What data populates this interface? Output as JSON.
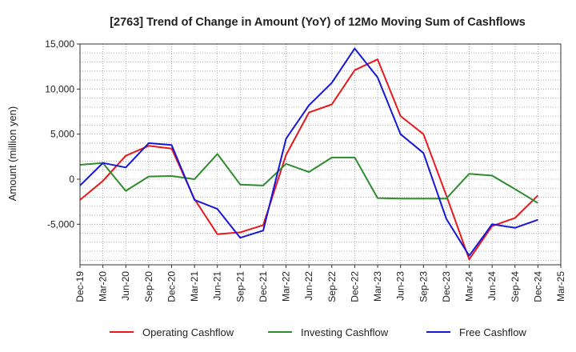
{
  "chart_data": {
    "type": "line",
    "title": "[2763]  Trend of Change in Amount (YoY) of 12Mo Moving Sum of Cashflows",
    "xlabel": "",
    "ylabel": "Amount (million yen)",
    "ylim": [
      -9500,
      15000
    ],
    "yticks": [
      15000,
      10000,
      5000,
      0,
      -5000
    ],
    "ytick_labels": [
      "15,000",
      "10,000",
      "5,000",
      "0",
      "-5,000"
    ],
    "categories": [
      "Dec-19",
      "Mar-20",
      "Jun-20",
      "Sep-20",
      "Dec-20",
      "Mar-21",
      "Jun-21",
      "Sep-21",
      "Dec-21",
      "Mar-22",
      "Jun-22",
      "Sep-22",
      "Dec-22",
      "Mar-23",
      "Jun-23",
      "Sep-23",
      "Dec-23",
      "Mar-24",
      "Jun-24",
      "Sep-24",
      "Dec-24",
      "Mar-25"
    ],
    "grid": true,
    "legend_position": "bottom",
    "series": [
      {
        "name": "Operating Cashflow",
        "color": "#e8191c",
        "values": [
          -2300,
          -200,
          2600,
          3700,
          3400,
          -2200,
          -6100,
          -5900,
          -5100,
          2700,
          7400,
          8300,
          12100,
          13300,
          7000,
          5000,
          -1800,
          -8900,
          -5200,
          -4300,
          -1800,
          null
        ]
      },
      {
        "name": "Investing Cashflow",
        "color": "#2e8b2e",
        "values": [
          1600,
          1800,
          -1300,
          300,
          350,
          0,
          2800,
          -600,
          -700,
          1700,
          800,
          2400,
          2400,
          -2100,
          -2150,
          -2150,
          -2150,
          600,
          400,
          -1100,
          -2650,
          null
        ]
      },
      {
        "name": "Free Cashflow",
        "color": "#1717d6",
        "values": [
          -700,
          1800,
          1300,
          4000,
          3800,
          -2300,
          -3300,
          -6500,
          -5700,
          4500,
          8200,
          10700,
          14500,
          11300,
          5000,
          2900,
          -4400,
          -8500,
          -5000,
          -5400,
          -4500,
          null
        ]
      }
    ]
  }
}
